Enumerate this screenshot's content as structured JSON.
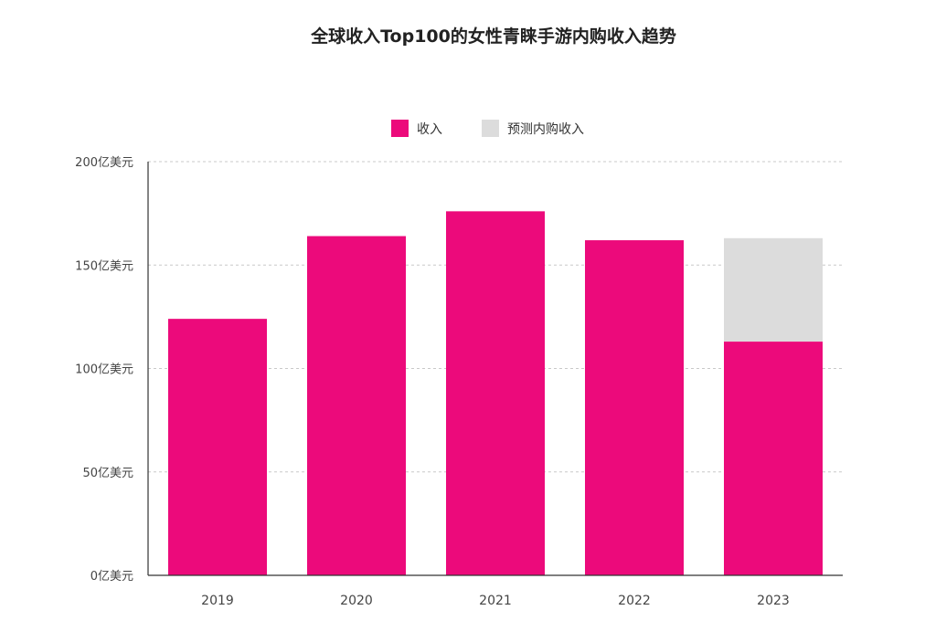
{
  "chart_data": {
    "type": "bar",
    "stacked": true,
    "title": "全球收入Top100的女性青睐手游内购收入趋势",
    "categories": [
      "2019",
      "2020",
      "2021",
      "2022",
      "2023"
    ],
    "series": [
      {
        "name": "收入",
        "color": "#ec0a7b",
        "values": [
          124,
          164,
          176,
          162,
          113
        ]
      },
      {
        "name": "预测内购收入",
        "color": "#dcdcdc",
        "values": [
          0,
          0,
          0,
          0,
          50
        ]
      }
    ],
    "yticks": [
      "0亿美元",
      "50亿美元",
      "100亿美元",
      "150亿美元",
      "200亿美元"
    ],
    "ylim": [
      0,
      200
    ],
    "ytick_step": 50,
    "grid": true,
    "legend_position": "top-center"
  }
}
